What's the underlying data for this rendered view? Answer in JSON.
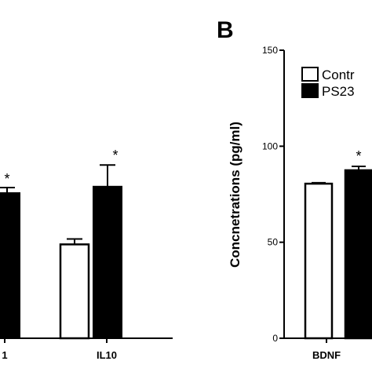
{
  "chart_data": [
    {
      "type": "bar",
      "categories": [
        "1",
        "IL10"
      ],
      "series": [
        {
          "values": [
            null,
            26
          ]
        },
        {
          "values": [
            null,
            42
          ]
        }
      ],
      "errors": [
        [
          null,
          1.5
        ],
        [
          null,
          6
        ]
      ],
      "significance": [
        "*",
        "*"
      ],
      "colors": [
        "#ffffff",
        "#000000"
      ]
    },
    {
      "type": "bar",
      "panel_label": "B",
      "ylabel": "Concnetrations (pg/ml)",
      "ylim": [
        0,
        150
      ],
      "yticks": [
        "0",
        "50",
        "100",
        "150"
      ],
      "categories": [
        "BDNF"
      ],
      "series": [
        {
          "name": "Contr",
          "values": [
            80.5
          ]
        },
        {
          "name": "PS23",
          "values": [
            87.5
          ]
        }
      ],
      "errors": [
        [
          0.5
        ],
        [
          2
        ]
      ],
      "significance": [
        "*"
      ],
      "colors": [
        "#ffffff",
        "#000000"
      ],
      "legend": "top-right"
    }
  ]
}
